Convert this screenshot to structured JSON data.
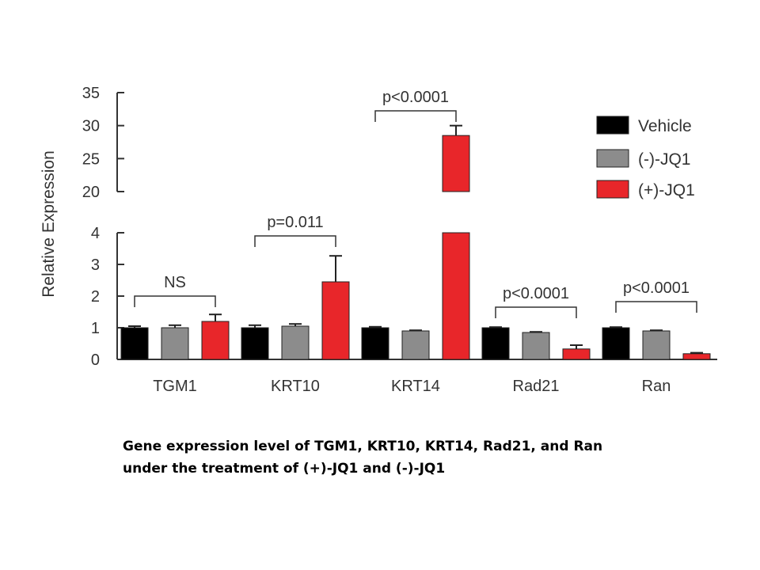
{
  "chart_data": {
    "type": "bar",
    "ylabel": "Relative Expression",
    "categories": [
      "TGM1",
      "KRT10",
      "KRT14",
      "Rad21",
      "Ran"
    ],
    "series": [
      {
        "name": "Vehicle",
        "color": "#000000",
        "values": [
          1.0,
          1.0,
          1.0,
          1.0,
          1.0
        ],
        "errors": [
          0.05,
          0.08,
          0.03,
          0.02,
          0.02
        ]
      },
      {
        "name": "(-)-JQ1",
        "color": "#8c8c8c",
        "values": [
          1.0,
          1.05,
          0.9,
          0.85,
          0.9
        ],
        "errors": [
          0.08,
          0.07,
          0.02,
          0.02,
          0.02
        ]
      },
      {
        "name": "(+)-JQ1",
        "color": "#e8262a",
        "values": [
          1.2,
          2.45,
          28.5,
          0.33,
          0.18
        ],
        "errors": [
          0.22,
          0.82,
          1.5,
          0.12,
          0.03
        ]
      }
    ],
    "y_axis_segments": [
      {
        "range": [
          0,
          4
        ],
        "ticks": [
          "0",
          "1",
          "2",
          "3",
          "4"
        ]
      },
      {
        "range": [
          20,
          35
        ],
        "ticks": [
          "20",
          "25",
          "30",
          "35"
        ]
      }
    ],
    "broken_axis": true,
    "annotations": [
      "NS",
      "p=0.011",
      "p<0.0001",
      "p<0.0001",
      "p<0.0001"
    ],
    "legend_position": "top-right",
    "grid": false
  },
  "caption": {
    "line1": "Gene expression level of TGM1, KRT10, KRT14, Rad21, and Ran",
    "line2": "under the treatment of (+)-JQ1 and (-)-JQ1"
  }
}
